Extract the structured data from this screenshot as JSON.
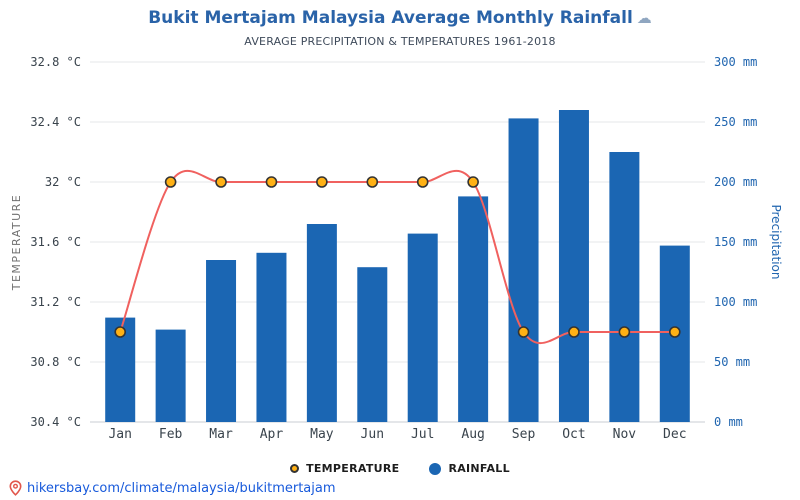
{
  "page": {
    "footer_link": "hikersbay.com/climate/malaysia/bukitmertajam"
  },
  "chart_data": {
    "type": "bar+line",
    "title": "Bukit Mertajam Malaysia Average Monthly Rainfall",
    "title_icon": "☁",
    "subtitle": "AVERAGE PRECIPITATION & TEMPERATURES 1961-2018",
    "categories": [
      "Jan",
      "Feb",
      "Mar",
      "Apr",
      "May",
      "Jun",
      "Jul",
      "Aug",
      "Sep",
      "Oct",
      "Nov",
      "Dec"
    ],
    "series": [
      {
        "name": "RAINFALL",
        "type": "bar",
        "axis": "right",
        "unit": "mm",
        "color": "#1b66b3",
        "values": [
          87,
          77,
          135,
          141,
          165,
          129,
          157,
          188,
          253,
          260,
          225,
          147
        ]
      },
      {
        "name": "TEMPERATURE",
        "type": "line",
        "axis": "left",
        "unit": "°C",
        "color": "#f0615f",
        "marker_fill": "#ffb115",
        "marker_stroke": "#333333",
        "values": [
          31.0,
          32,
          32,
          32,
          32,
          32,
          32,
          32,
          31.0,
          31.0,
          31.0,
          31.0
        ]
      }
    ],
    "left_axis": {
      "title": "TEMPERATURE",
      "unit": "°C",
      "min": 30.4,
      "max": 32.8,
      "tick_step": 0.4,
      "ticks": [
        "30.4 °C",
        "30.8 °C",
        "31.2 °C",
        "31.6 °C",
        "32 °C",
        "32.4 °C",
        "32.8 °C"
      ]
    },
    "right_axis": {
      "title": "Precipitation",
      "unit": "mm",
      "min": 0,
      "max": 300,
      "tick_step": 50,
      "ticks": [
        "0 mm",
        "50 mm",
        "100 mm",
        "150 mm",
        "200 mm",
        "250 mm",
        "300 mm"
      ]
    },
    "grid": true,
    "legend_position": "bottom"
  }
}
